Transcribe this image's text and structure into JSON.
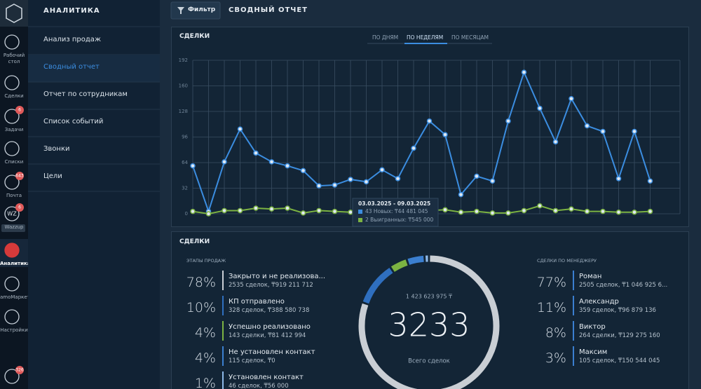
{
  "nav": {
    "active": 6,
    "items": [
      {
        "label": "Рабочий стол"
      },
      {
        "label": "Сделки"
      },
      {
        "label": "Задачи",
        "badge": "6"
      },
      {
        "label": "Списки"
      },
      {
        "label": "Почта",
        "badge": "643"
      },
      {
        "label": "Wazzup",
        "icon_text": "WZ",
        "badge": "6"
      },
      {
        "label": "Аналитика"
      },
      {
        "label": "amoМаркет"
      },
      {
        "label": "Настройки"
      },
      {
        "badge": "326"
      }
    ]
  },
  "section": {
    "title": "АНАЛИТИКА",
    "active": 1,
    "items": [
      "Анализ продаж",
      "Сводный отчет",
      "Отчет по сотрудникам",
      "Список событий",
      "Звонки",
      "Цели"
    ]
  },
  "topbar": {
    "filter": "Фильтр",
    "title": "СВОДНЫЙ ОТЧЕТ"
  },
  "chart_data": {
    "type": "line",
    "title": "СДЕЛКИ",
    "tabs": [
      "ПО ДНЯМ",
      "ПО НЕДЕЛЯМ",
      "ПО МЕСЯЦАМ"
    ],
    "active_tab": 1,
    "categories": [
      null,
      null,
      null,
      null,
      null,
      null,
      null,
      null,
      null,
      null,
      null,
      null,
      null,
      null,
      null,
      null,
      null,
      null,
      null,
      null,
      null,
      null,
      null,
      null,
      null,
      null,
      null,
      null,
      null,
      null
    ],
    "series": [
      {
        "color": "#3b8de0",
        "values": [
          60,
          3,
          65,
          106,
          76,
          65,
          60,
          54,
          35,
          36,
          43,
          40,
          55,
          44,
          82,
          116,
          99,
          24,
          47,
          41,
          116,
          177,
          132,
          90,
          144,
          110,
          103,
          44,
          103,
          41
        ]
      },
      {
        "color": "#7cb342",
        "values": [
          3,
          0,
          4,
          4,
          7,
          6,
          7,
          1,
          4,
          3,
          2,
          3,
          2,
          4,
          3,
          4,
          5,
          2,
          3,
          1,
          1,
          4,
          10,
          4,
          6,
          3,
          3,
          2,
          2,
          3
        ]
      }
    ],
    "ylim": [
      0,
      192
    ],
    "yticks": [
      0,
      32,
      64,
      96,
      128,
      160,
      192
    ],
    "grid": true,
    "tooltip": {
      "title": "03.03.2025 - 09.03.2025",
      "lines": [
        "43 Новых: ₸44 481 045",
        "2 Выигранных: ₸545 000"
      ]
    }
  },
  "summary": {
    "title": "СДЕЛКИ",
    "stages_title": "ЭТАПЫ ПРОДАЖ",
    "stages": [
      {
        "percent": 78,
        "percent_label": "78%",
        "name": "Закрыто и не реализова...",
        "details": "2535 сделок, ₸919 211 712",
        "color": "#c9ced4"
      },
      {
        "percent": 10,
        "percent_label": "10%",
        "name": "КП отправлено",
        "details": "328 сделок, ₸388 580 738",
        "color": "#2f6fbf"
      },
      {
        "percent": 4,
        "percent_label": "4%",
        "name": "Успешно реализовано",
        "details": "143 сделки, ₸81 412 994",
        "color": "#7cb342"
      },
      {
        "percent": 4,
        "percent_label": "4%",
        "name": "Не установлен контакт",
        "details": "115 сделок, ₸0",
        "color": "#3b7fd0"
      },
      {
        "percent": 1,
        "percent_label": "1%",
        "name": "Установлен контакт",
        "details": "46 сделок, ₸56 000",
        "color": "#8db8e8"
      }
    ],
    "total_amount": "1 423 623 975 ₸",
    "total": 3233,
    "total_label": "Всего сделок",
    "managers_title": "СДЕЛКИ ПО МЕНЕДЖЕРУ",
    "managers": [
      {
        "percent": 77,
        "percent_label": "77%",
        "name": "Роман",
        "details": "2505 сделок, ₸1 046 925 6..."
      },
      {
        "percent": 11,
        "percent_label": "11%",
        "name": "Александр",
        "details": "359 сделок, ₸96 879 136"
      },
      {
        "percent": 8,
        "percent_label": "8%",
        "name": "Виктор",
        "details": "264 сделки, ₸129 275 160"
      },
      {
        "percent": 3,
        "percent_label": "3%",
        "name": "Максим",
        "details": "105 сделок, ₸150 544 045"
      }
    ]
  }
}
